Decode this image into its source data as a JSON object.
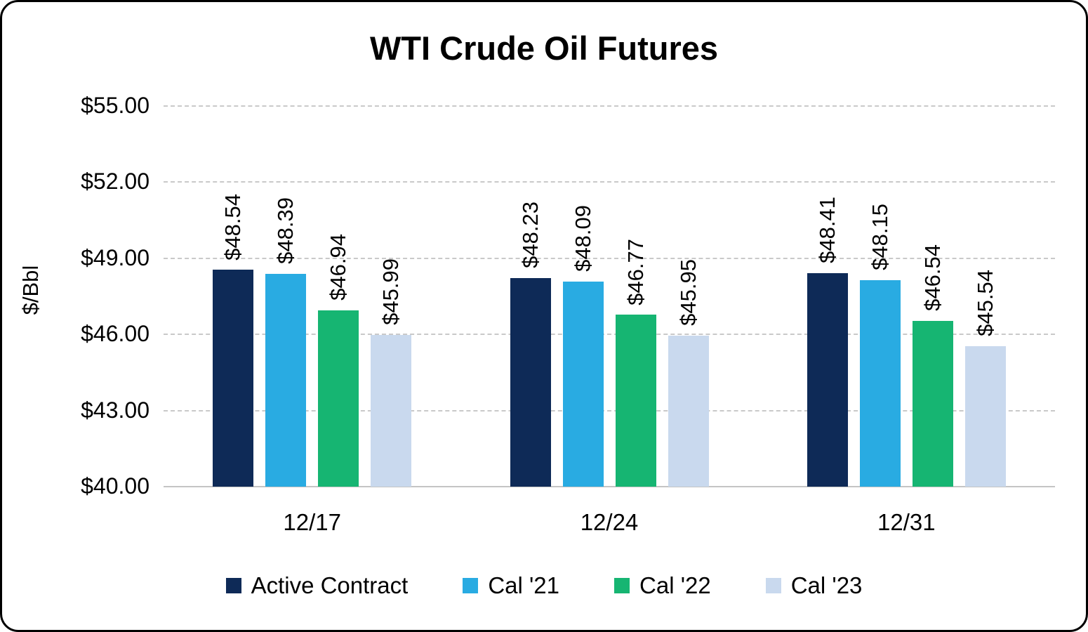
{
  "chart_data": {
    "type": "bar",
    "title": "WTI Crude Oil Futures",
    "ylabel": "$/Bbl",
    "xlabel": "",
    "categories": [
      "12/17",
      "12/24",
      "12/31"
    ],
    "series": [
      {
        "name": "Active Contract",
        "color": "#0E2A57",
        "values": [
          48.54,
          48.23,
          48.41
        ]
      },
      {
        "name": "Cal '21",
        "color": "#29ABE2",
        "values": [
          48.39,
          48.09,
          48.15
        ]
      },
      {
        "name": "Cal '22",
        "color": "#16B572",
        "values": [
          46.94,
          46.77,
          46.54
        ]
      },
      {
        "name": "Cal '23",
        "color": "#C9D9EE",
        "values": [
          45.99,
          45.95,
          45.54
        ]
      }
    ],
    "ylim": [
      40,
      55
    ],
    "ytick_step": 3,
    "ytick_labels": [
      "$40.00",
      "$43.00",
      "$46.00",
      "$49.00",
      "$52.00",
      "$55.00"
    ],
    "grid": "dashed-horizontal",
    "legend_position": "bottom",
    "data_label_format": "$0.00",
    "data_label_rotation": 90
  }
}
